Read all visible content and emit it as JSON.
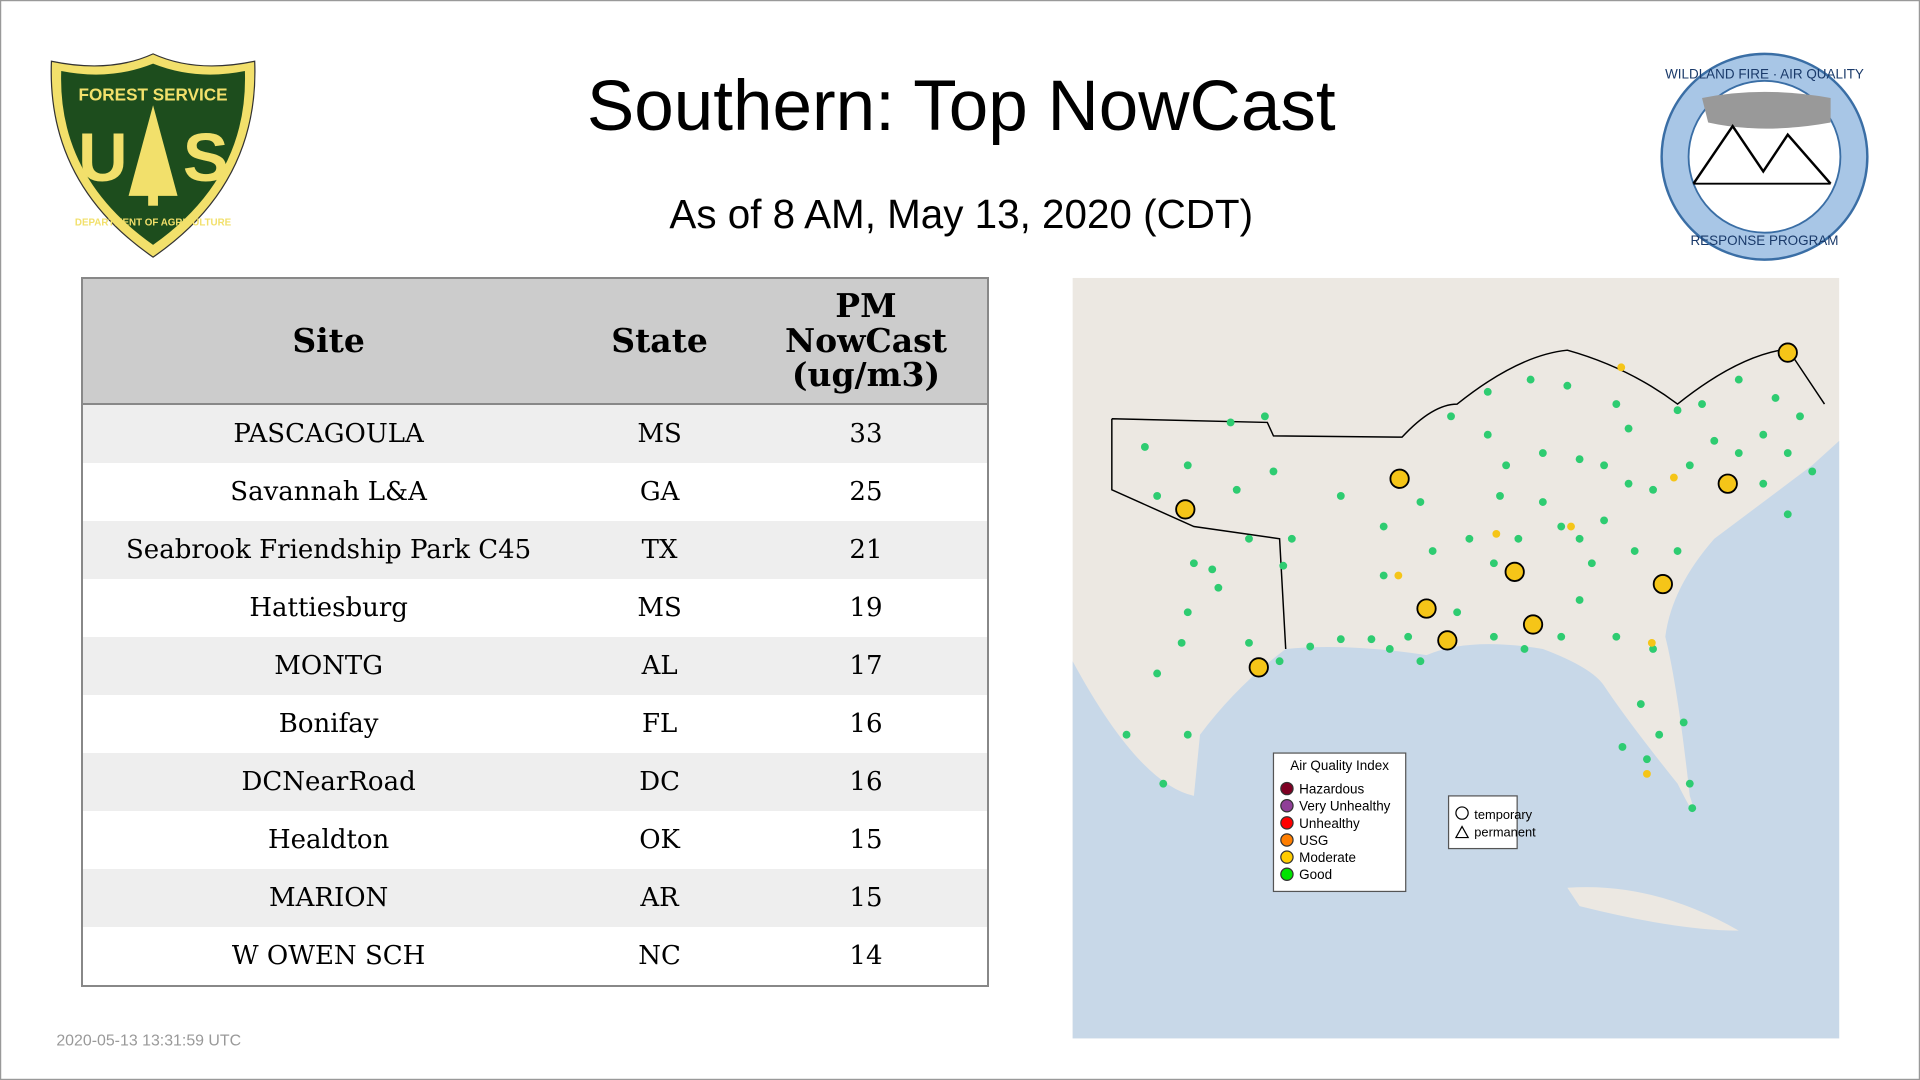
{
  "header": {
    "title": "Southern: Top NowCast",
    "subtitle": "As of  8 AM, May 13, 2020 (CDT)"
  },
  "logos": {
    "left": {
      "top": "FOREST SERVICE",
      "letter_left": "U",
      "letter_right": "S",
      "bottom": "DEPARTMENT OF AGRICULTURE"
    },
    "right": {
      "top": "WILDLAND FIRE · AIR QUALITY",
      "bottom": "RESPONSE PROGRAM"
    }
  },
  "table": {
    "columns": [
      "Site",
      "State",
      "PM NowCast (ug/m3)"
    ],
    "rows": [
      [
        "PASCAGOULA",
        "MS",
        33
      ],
      [
        "Savannah L&A",
        "GA",
        25
      ],
      [
        "Seabrook Friendship Park C45",
        "TX",
        21
      ],
      [
        "Hattiesburg",
        "MS",
        19
      ],
      [
        "MONTG",
        "AL",
        17
      ],
      [
        "Bonifay",
        "FL",
        16
      ],
      [
        "DCNearRoad",
        "DC",
        16
      ],
      [
        "Healdton",
        "OK",
        15
      ],
      [
        "MARION",
        "AR",
        15
      ],
      [
        "W OWEN SCH",
        "NC",
        14
      ]
    ]
  },
  "map": {
    "legend": {
      "title": "Air Quality Index",
      "items": [
        {
          "label": "Hazardous",
          "color": "#7e0023"
        },
        {
          "label": "Very Unhealthy",
          "color": "#8f3f97"
        },
        {
          "label": "Unhealthy",
          "color": "#ff0000"
        },
        {
          "label": "USG",
          "color": "#ff7e00"
        },
        {
          "label": "Moderate",
          "color": "#ffcc00"
        },
        {
          "label": "Good",
          "color": "#00e400"
        }
      ]
    },
    "shape_legend": [
      "temporary",
      "permanent"
    ]
  },
  "footer": {
    "timestamp": "2020-05-13 13:31:59 UTC"
  }
}
